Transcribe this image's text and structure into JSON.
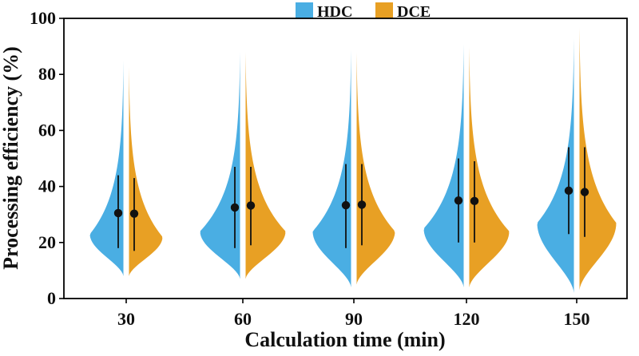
{
  "chart_data": {
    "type": "violin",
    "xlabel": "Calculation time (min)",
    "ylabel": "Processing efficiency (%)",
    "ylim": [
      0,
      100
    ],
    "yticks": [
      0,
      20,
      40,
      60,
      80,
      100
    ],
    "categories": [
      "30",
      "60",
      "90",
      "120",
      "150"
    ],
    "legend": {
      "placement": "top-center",
      "entries": [
        "HDC",
        "DCE"
      ]
    },
    "series": [
      {
        "name": "HDC",
        "color": "#4aaee3",
        "side": "left",
        "min": [
          8,
          7,
          4,
          4,
          2
        ],
        "max": [
          85,
          88,
          89,
          91,
          93
        ],
        "q1": [
          18,
          18,
          18,
          20,
          23
        ],
        "q3": [
          44,
          47,
          48,
          50,
          54
        ],
        "mean": [
          30.5,
          32.5,
          33.3,
          35,
          38.5
        ],
        "mode": [
          23,
          24,
          24,
          25,
          27
        ],
        "mode_width": [
          0.21,
          0.25,
          0.24,
          0.25,
          0.23
        ]
      },
      {
        "name": "DCE",
        "color": "#e8a024",
        "side": "right",
        "min": [
          8,
          7,
          5,
          4,
          3
        ],
        "max": [
          83,
          88,
          88,
          90,
          97
        ],
        "q1": [
          17,
          19,
          19,
          20,
          22
        ],
        "q3": [
          43,
          47,
          48,
          49,
          54
        ],
        "mean": [
          30.3,
          33.2,
          33.5,
          34.8,
          38
        ],
        "mode": [
          22,
          24,
          24,
          24,
          27
        ],
        "mode_width": [
          0.21,
          0.25,
          0.24,
          0.25,
          0.23
        ]
      }
    ]
  }
}
